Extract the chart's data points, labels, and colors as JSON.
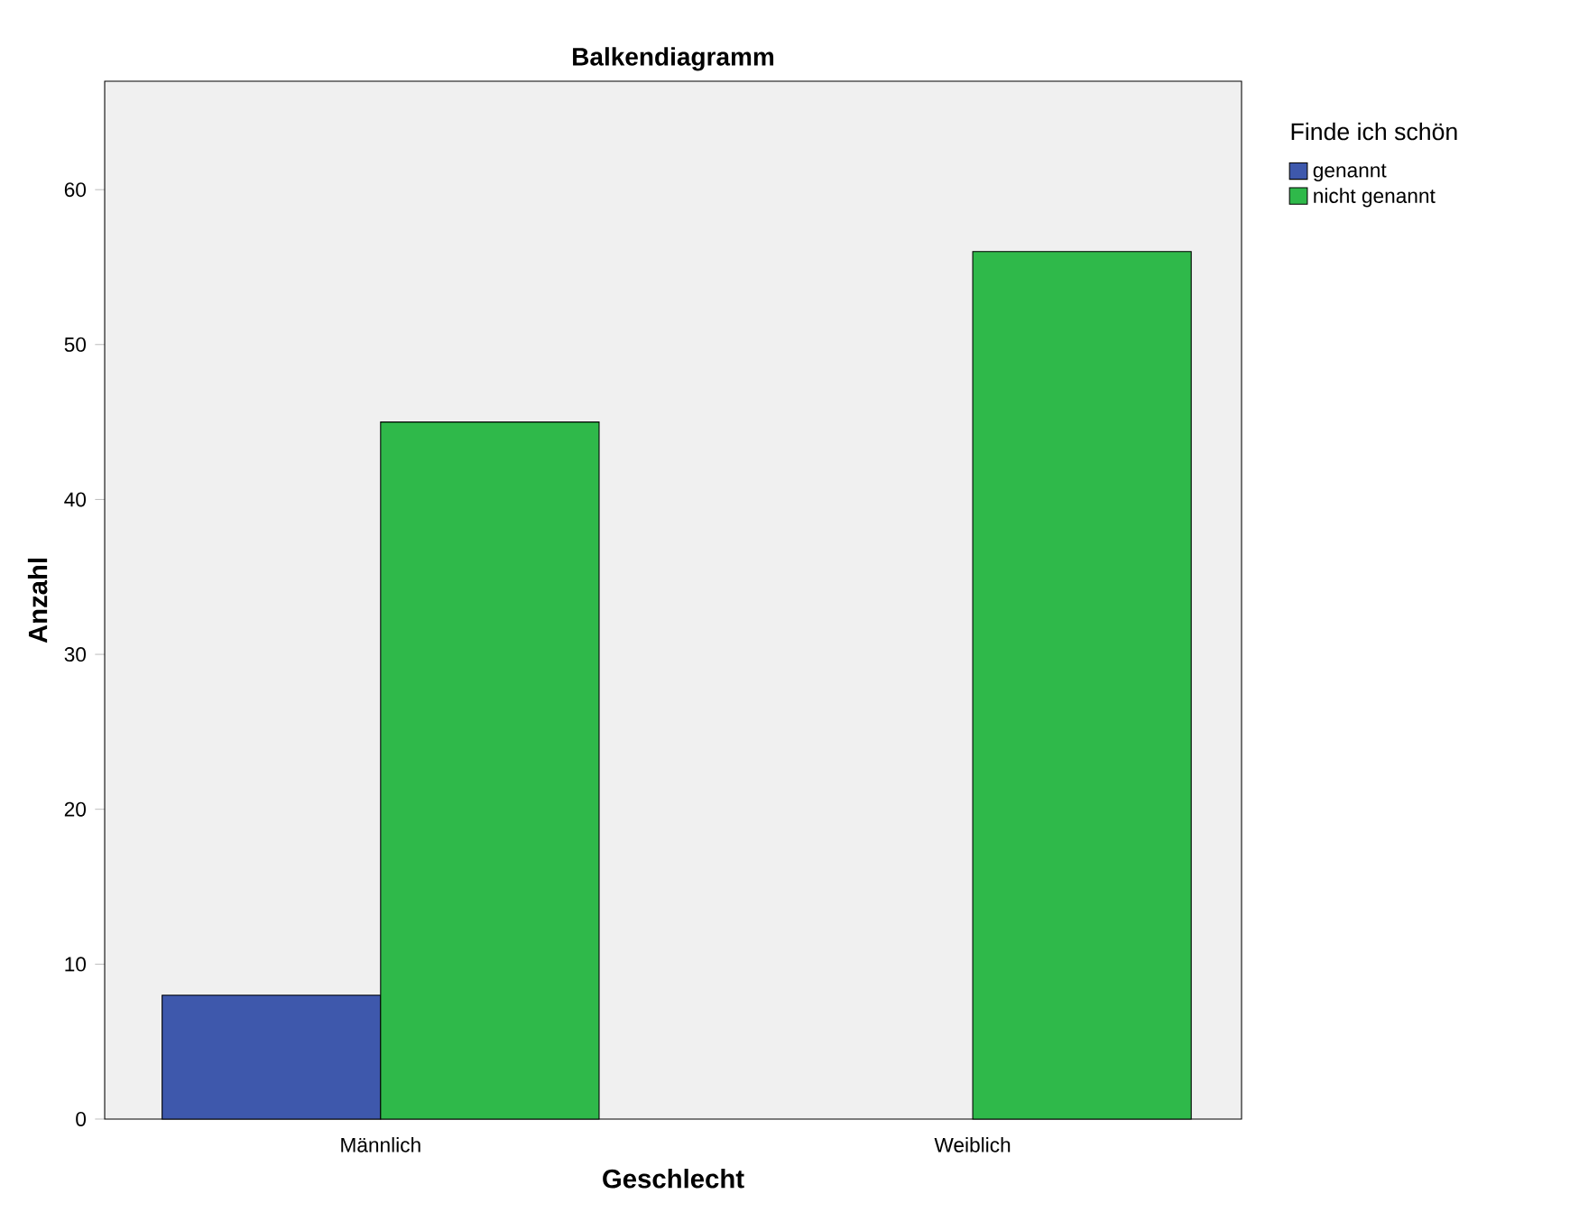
{
  "chart_data": {
    "type": "bar",
    "title": "Balkendiagramm",
    "xlabel": "Geschlecht",
    "ylabel": "Anzahl",
    "legend_title": "Finde ich schön",
    "categories": [
      "Männlich",
      "Weiblich"
    ],
    "series": [
      {
        "name": "genannt",
        "color": "#3e58ac",
        "values": [
          8,
          null
        ]
      },
      {
        "name": "nicht genannt",
        "color": "#2fb94a",
        "values": [
          45,
          56
        ]
      }
    ],
    "ylim": [
      0,
      67
    ],
    "yticks": [
      0,
      10,
      20,
      30,
      40,
      50,
      60
    ],
    "grid": false,
    "legend": "top right"
  }
}
